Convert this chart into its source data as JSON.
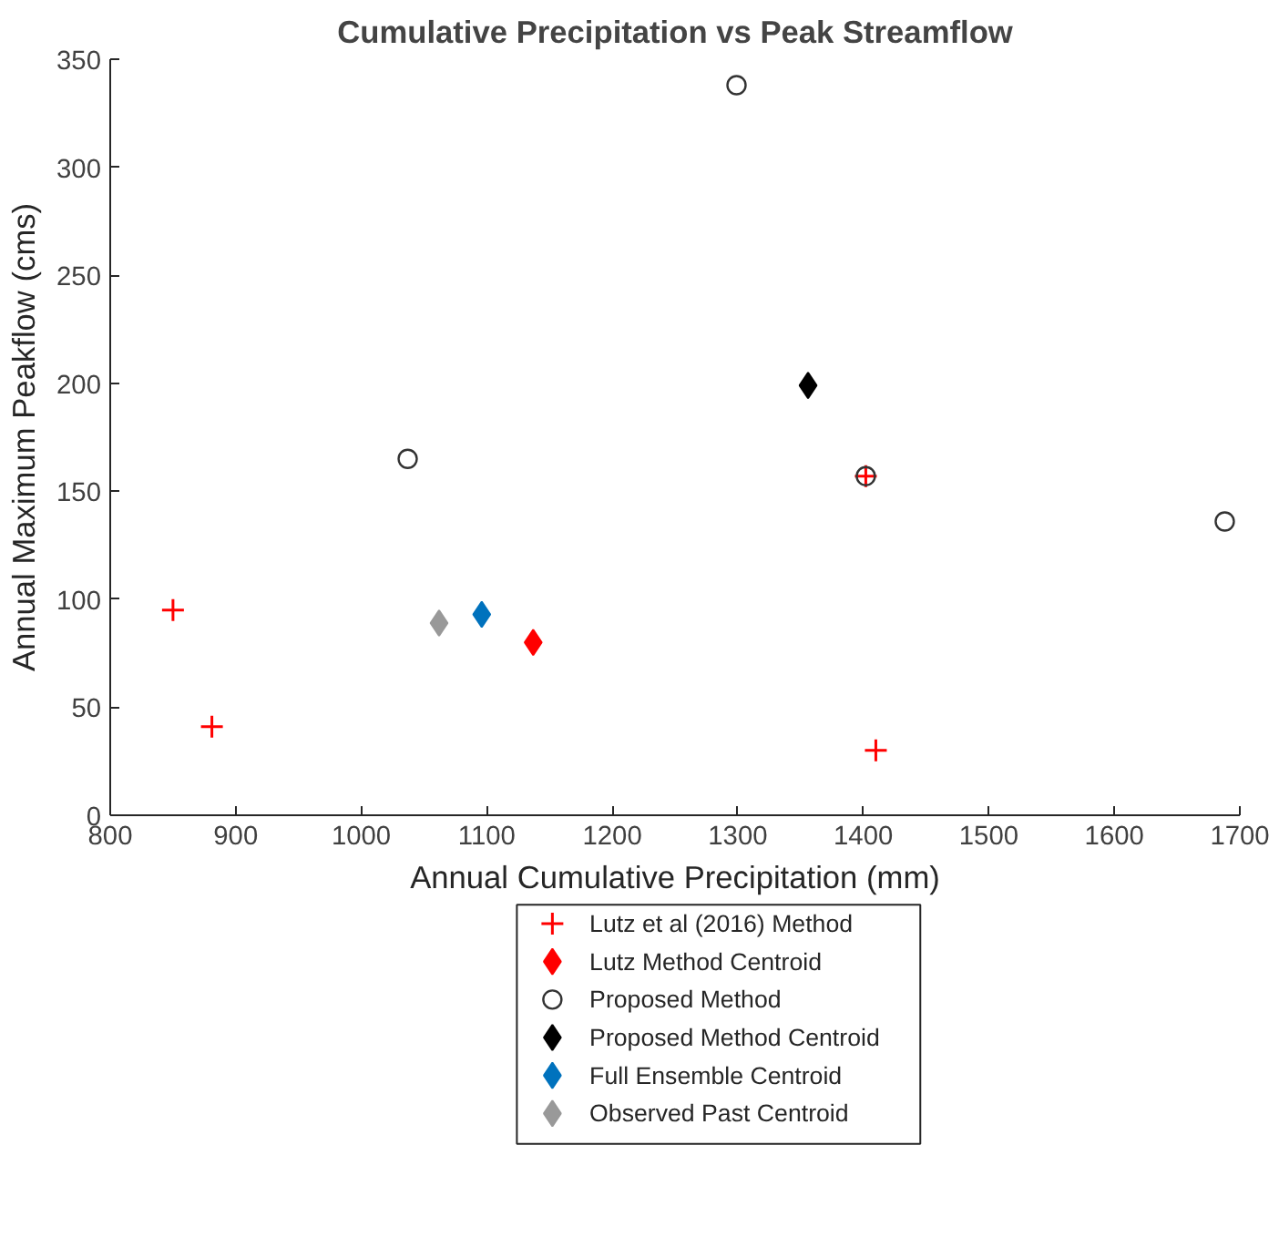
{
  "chart_data": {
    "type": "scatter",
    "title": "Cumulative Precipitation vs Peak Streamflow",
    "xlabel": "Annual Cumulative Precipitation (mm)",
    "ylabel": "Annual Maximum Peakflow (cms)",
    "xlim": [
      800,
      1700
    ],
    "xticks": [
      800,
      900,
      1000,
      1100,
      1200,
      1300,
      1400,
      1500,
      1600,
      1700
    ],
    "ylim": [
      0,
      350
    ],
    "yticks": [
      0,
      50,
      100,
      150,
      200,
      250,
      300,
      350
    ],
    "grid": false,
    "legend": "bottom",
    "series": [
      {
        "name": "Lutz et al (2016) Method",
        "color": "#ff0000",
        "marker": "cross",
        "x": [
          850,
          881,
          1410,
          1402
        ],
        "values": [
          95,
          41,
          30,
          157
        ]
      },
      {
        "name": "Lutz Method Centroid",
        "color": "#ff0000",
        "marker": "diamond",
        "x": [
          1137
        ],
        "values": [
          80
        ]
      },
      {
        "name": "Proposed Method",
        "color": "#333333",
        "marker": "circle",
        "x": [
          1037,
          1299,
          1402,
          1688
        ],
        "values": [
          165,
          338,
          157,
          136
        ]
      },
      {
        "name": "Proposed Method Centroid",
        "color": "#000000",
        "marker": "diamond",
        "x": [
          1356
        ],
        "values": [
          199
        ]
      },
      {
        "name": "Full Ensemble Centroid",
        "color": "#0072bd",
        "marker": "diamond",
        "x": [
          1096
        ],
        "values": [
          93
        ]
      },
      {
        "name": "Observed Past Centroid",
        "color": "#999999",
        "marker": "diamond",
        "x": [
          1062
        ],
        "values": [
          89
        ]
      }
    ]
  }
}
